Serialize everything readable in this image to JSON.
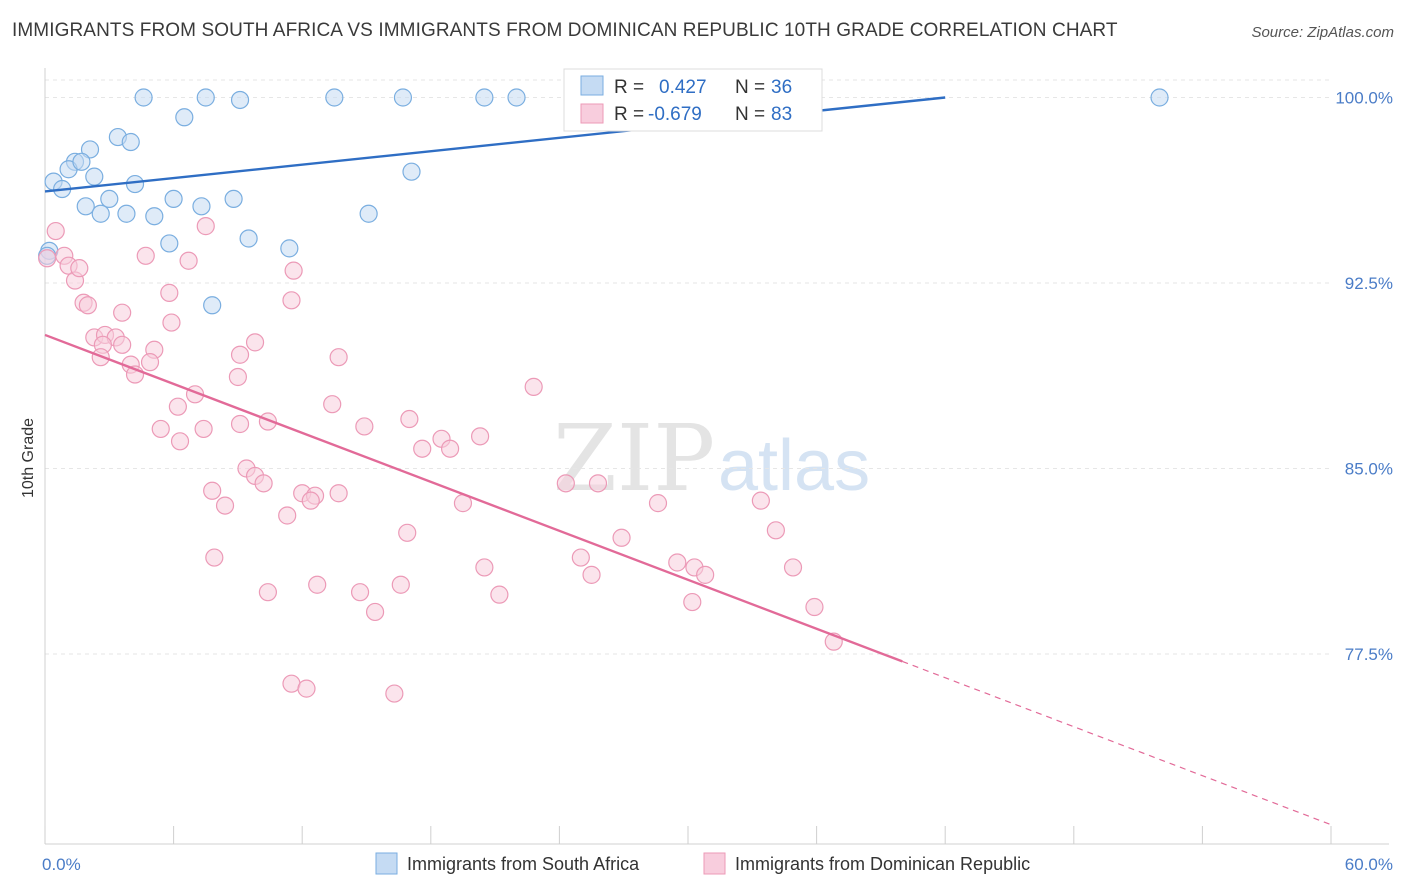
{
  "title": "IMMIGRANTS FROM SOUTH AFRICA VS IMMIGRANTS FROM DOMINICAN REPUBLIC 10TH GRADE CORRELATION CHART",
  "source": "Source: ZipAtlas.com",
  "watermark": {
    "zip": "ZIP",
    "atlas": "atlas"
  },
  "chart_data": {
    "type": "scatter",
    "title": "IMMIGRANTS FROM SOUTH AFRICA VS IMMIGRANTS FROM DOMINICAN REPUBLIC 10TH GRADE CORRELATION CHART",
    "xlabel": "",
    "ylabel": "10th Grade",
    "xlim": [
      0,
      60
    ],
    "ylim": [
      70,
      100.8
    ],
    "x_tick_labels": [
      {
        "value": 0,
        "label": "0.0%"
      },
      {
        "value": 60,
        "label": "60.0%"
      }
    ],
    "y_tick_labels": [
      {
        "value": 100,
        "label": "100.0%"
      },
      {
        "value": 92.5,
        "label": "92.5%"
      },
      {
        "value": 85,
        "label": "85.0%"
      },
      {
        "value": 77.5,
        "label": "77.5%"
      }
    ],
    "grid": true,
    "legend_position": "bottom-center",
    "stats_box": [
      {
        "r_label": "R = ",
        "r_value": "0.427",
        "n_label": "N = ",
        "n_value": "36"
      },
      {
        "r_label": "R = ",
        "r_value": "-0.679",
        "n_label": "N = ",
        "n_value": "83"
      }
    ],
    "series": [
      {
        "name": "Immigrants from South Africa",
        "color": "#7aaee0",
        "fill": "#c5dbf3",
        "line_color": "#2f6ec4",
        "trend": {
          "x": [
            0,
            42
          ],
          "y": [
            96.2,
            100
          ]
        },
        "points": [
          [
            4.6,
            100
          ],
          [
            7.5,
            100
          ],
          [
            9.1,
            99.9
          ],
          [
            13.5,
            100
          ],
          [
            16.7,
            100
          ],
          [
            20.5,
            100
          ],
          [
            22,
            100
          ],
          [
            52,
            100
          ],
          [
            6.5,
            99.2
          ],
          [
            3.4,
            98.4
          ],
          [
            4,
            98.2
          ],
          [
            2.1,
            97.9
          ],
          [
            1.4,
            97.4
          ],
          [
            1.1,
            97.1
          ],
          [
            2.3,
            96.8
          ],
          [
            0.4,
            96.6
          ],
          [
            0.8,
            96.3
          ],
          [
            4.2,
            96.5
          ],
          [
            3,
            95.9
          ],
          [
            6,
            95.9
          ],
          [
            8.8,
            95.9
          ],
          [
            1.9,
            95.6
          ],
          [
            7.3,
            95.6
          ],
          [
            2.6,
            95.3
          ],
          [
            3.8,
            95.3
          ],
          [
            5.1,
            95.2
          ],
          [
            15.1,
            95.3
          ],
          [
            17.1,
            97
          ],
          [
            9.5,
            94.3
          ],
          [
            5.8,
            94.1
          ],
          [
            11.4,
            93.9
          ],
          [
            7.8,
            91.6
          ],
          [
            0.2,
            93.8
          ],
          [
            0.1,
            93.6
          ],
          [
            33,
            100
          ],
          [
            1.7,
            97.4
          ]
        ]
      },
      {
        "name": "Immigrants from Dominican Republic",
        "color": "#ec9ab7",
        "fill": "#f8cddd",
        "line_color": "#e26a98",
        "trend": {
          "x": [
            0,
            40
          ],
          "y": [
            90.4,
            77.2
          ],
          "dashed_to": {
            "x": 60,
            "y": 70.6
          }
        },
        "points": [
          [
            0.5,
            94.6
          ],
          [
            0.9,
            93.6
          ],
          [
            1.1,
            93.2
          ],
          [
            1.4,
            92.6
          ],
          [
            1.6,
            93.1
          ],
          [
            1.8,
            91.7
          ],
          [
            2,
            91.6
          ],
          [
            7.5,
            94.8
          ],
          [
            4.7,
            93.6
          ],
          [
            6.7,
            93.4
          ],
          [
            11.6,
            93
          ],
          [
            5.8,
            92.1
          ],
          [
            11.5,
            91.8
          ],
          [
            3.6,
            91.3
          ],
          [
            5.9,
            90.9
          ],
          [
            2.3,
            90.3
          ],
          [
            2.8,
            90.4
          ],
          [
            3.3,
            90.3
          ],
          [
            3.6,
            90
          ],
          [
            2.7,
            90
          ],
          [
            5.1,
            89.8
          ],
          [
            9.1,
            89.6
          ],
          [
            9.8,
            90.1
          ],
          [
            13.7,
            89.5
          ],
          [
            2.6,
            89.5
          ],
          [
            4,
            89.2
          ],
          [
            4.2,
            88.8
          ],
          [
            4.9,
            89.3
          ],
          [
            9,
            88.7
          ],
          [
            22.8,
            88.3
          ],
          [
            7,
            88
          ],
          [
            6.2,
            87.5
          ],
          [
            13.4,
            87.6
          ],
          [
            17,
            87
          ],
          [
            9.1,
            86.8
          ],
          [
            10.4,
            86.9
          ],
          [
            14.9,
            86.7
          ],
          [
            5.4,
            86.6
          ],
          [
            7.4,
            86.6
          ],
          [
            6.3,
            86.1
          ],
          [
            18.5,
            86.2
          ],
          [
            20.3,
            86.3
          ],
          [
            17.6,
            85.8
          ],
          [
            18.9,
            85.8
          ],
          [
            9.4,
            85
          ],
          [
            9.8,
            84.7
          ],
          [
            10.2,
            84.4
          ],
          [
            24.3,
            84.4
          ],
          [
            25.8,
            84.4
          ],
          [
            7.8,
            84.1
          ],
          [
            12,
            84
          ],
          [
            12.6,
            83.9
          ],
          [
            13.7,
            84
          ],
          [
            12.4,
            83.7
          ],
          [
            19.5,
            83.6
          ],
          [
            28.6,
            83.6
          ],
          [
            33.4,
            83.7
          ],
          [
            8.4,
            83.5
          ],
          [
            11.3,
            83.1
          ],
          [
            16.9,
            82.4
          ],
          [
            26.9,
            82.2
          ],
          [
            34.1,
            82.5
          ],
          [
            25,
            81.4
          ],
          [
            29.5,
            81.2
          ],
          [
            7.9,
            81.4
          ],
          [
            20.5,
            81
          ],
          [
            30.3,
            81
          ],
          [
            34.9,
            81
          ],
          [
            25.5,
            80.7
          ],
          [
            30.8,
            80.7
          ],
          [
            12.7,
            80.3
          ],
          [
            16.6,
            80.3
          ],
          [
            10.4,
            80
          ],
          [
            14.7,
            80
          ],
          [
            21.2,
            79.9
          ],
          [
            30.2,
            79.6
          ],
          [
            35.9,
            79.4
          ],
          [
            15.4,
            79.2
          ],
          [
            36.8,
            78
          ],
          [
            11.5,
            76.3
          ],
          [
            12.2,
            76.1
          ],
          [
            16.3,
            75.9
          ],
          [
            0.1,
            93.5
          ]
        ]
      }
    ]
  }
}
